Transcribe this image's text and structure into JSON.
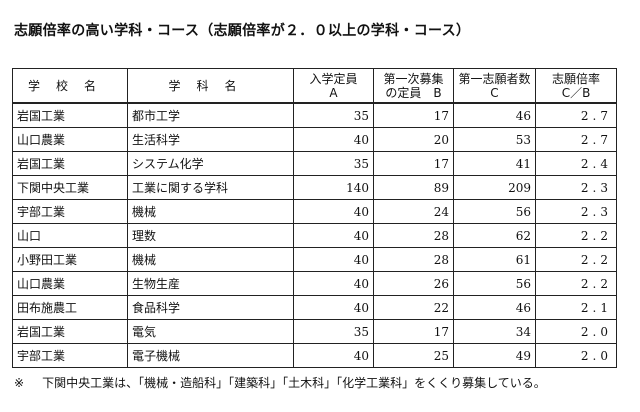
{
  "title": "志願倍率の高い学科・コース（志願倍率が２．０以上の学科・コース）",
  "headers": {
    "school": "学校名",
    "dept": "学科名",
    "capacity_line1": "入学定員",
    "capacity_line2": "A",
    "quota_line1": "第一次募集",
    "quota_line2": "の定員　B",
    "applicants_line1": "第一志願者数",
    "applicants_line2": "C",
    "ratio_line1": "志願倍率",
    "ratio_line2": "C／B"
  },
  "rows": [
    {
      "school": "岩国工業",
      "dept": "都市工学",
      "capacity": "35",
      "quota": "17",
      "applicants": "46",
      "ratio": "2.7"
    },
    {
      "school": "山口農業",
      "dept": "生活科学",
      "capacity": "40",
      "quota": "20",
      "applicants": "53",
      "ratio": "2.7"
    },
    {
      "school": "岩国工業",
      "dept": "システム化学",
      "capacity": "35",
      "quota": "17",
      "applicants": "41",
      "ratio": "2.4"
    },
    {
      "school": "下関中央工業",
      "dept": "工業に関する学科",
      "capacity": "140",
      "quota": "89",
      "applicants": "209",
      "ratio": "2.3"
    },
    {
      "school": "宇部工業",
      "dept": "機械",
      "capacity": "40",
      "quota": "24",
      "applicants": "56",
      "ratio": "2.3"
    },
    {
      "school": "山口",
      "dept": "理数",
      "capacity": "40",
      "quota": "28",
      "applicants": "62",
      "ratio": "2.2"
    },
    {
      "school": "小野田工業",
      "dept": "機械",
      "capacity": "40",
      "quota": "28",
      "applicants": "61",
      "ratio": "2.2"
    },
    {
      "school": "山口農業",
      "dept": "生物生産",
      "capacity": "40",
      "quota": "26",
      "applicants": "56",
      "ratio": "2.2"
    },
    {
      "school": "田布施農工",
      "dept": "食品科学",
      "capacity": "40",
      "quota": "22",
      "applicants": "46",
      "ratio": "2.1"
    },
    {
      "school": "岩国工業",
      "dept": "電気",
      "capacity": "35",
      "quota": "17",
      "applicants": "34",
      "ratio": "2.0"
    },
    {
      "school": "宇部工業",
      "dept": "電子機械",
      "capacity": "40",
      "quota": "25",
      "applicants": "49",
      "ratio": "2.0"
    }
  ],
  "footnote": {
    "mark": "※",
    "text": "下関中央工業は、「機械・造船科」「建築科」「土木科」「化学工業科」をくくり募集している。"
  }
}
